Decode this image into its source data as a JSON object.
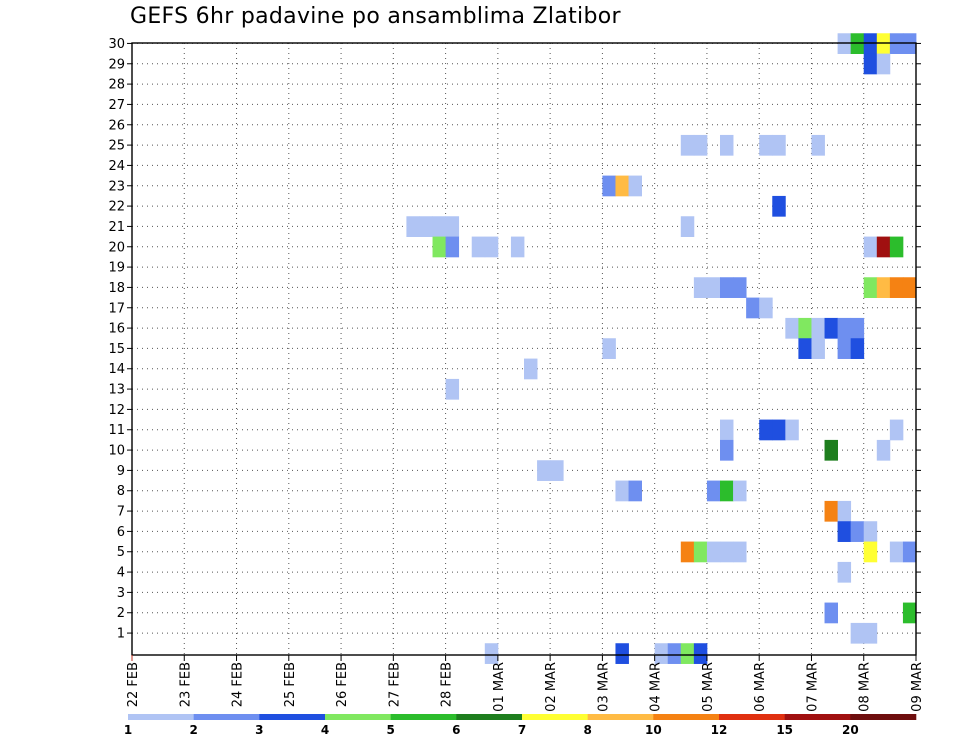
{
  "chart_data": {
    "type": "heatmap",
    "title": "GEFS 6hr padavine po ansamblima Zlatibor",
    "x_ticks": [
      "22 FEB",
      "23 FEB",
      "24 FEB",
      "25 FEB",
      "26 FEB",
      "27 FEB",
      "28 FEB",
      "01 MAR",
      "02 MAR",
      "03 MAR",
      "04 MAR",
      "05 MAR",
      "06 MAR",
      "07 MAR",
      "08 MAR",
      "09 MAR"
    ],
    "xlim_days": [
      0,
      15
    ],
    "y_ticks": [
      1,
      2,
      3,
      4,
      5,
      6,
      7,
      8,
      9,
      10,
      11,
      12,
      13,
      14,
      15,
      16,
      17,
      18,
      19,
      20,
      21,
      22,
      23,
      24,
      25,
      26,
      27,
      28,
      29,
      30
    ],
    "ylim": [
      0,
      30
    ],
    "grid": true,
    "colorbar": {
      "labels": [
        "1",
        "2",
        "3",
        "4",
        "5",
        "6",
        "7",
        "8",
        "10",
        "12",
        "15",
        "20"
      ],
      "colors": [
        "#b0c4f4",
        "#6e8ff0",
        "#1f4fe0",
        "#80e860",
        "#2cbd2c",
        "#1e7e1e",
        "#ffff33",
        "#ffbb44",
        "#f58213",
        "#e03010",
        "#a01010",
        "#6e0e0e"
      ]
    },
    "cells": [
      {
        "m": 30,
        "t": 54,
        "c": 0
      },
      {
        "m": 30,
        "t": 55,
        "c": 4
      },
      {
        "m": 30,
        "t": 56,
        "c": 2
      },
      {
        "m": 30,
        "t": 57,
        "c": 6
      },
      {
        "m": 30,
        "t": 58,
        "c": 1
      },
      {
        "m": 30,
        "t": 59,
        "c": 1
      },
      {
        "m": 29,
        "t": 56,
        "c": 2
      },
      {
        "m": 29,
        "t": 57,
        "c": 0
      },
      {
        "m": 25,
        "t": 42,
        "c": 0
      },
      {
        "m": 25,
        "t": 43,
        "c": 0
      },
      {
        "m": 25,
        "t": 45,
        "c": 0
      },
      {
        "m": 25,
        "t": 48,
        "c": 0
      },
      {
        "m": 25,
        "t": 49,
        "c": 0
      },
      {
        "m": 25,
        "t": 52,
        "c": 0
      },
      {
        "m": 23,
        "t": 36,
        "c": 1
      },
      {
        "m": 23,
        "t": 37,
        "c": 7
      },
      {
        "m": 23,
        "t": 38,
        "c": 0
      },
      {
        "m": 22,
        "t": 49,
        "c": 2
      },
      {
        "m": 21,
        "t": 21,
        "c": 0
      },
      {
        "m": 21,
        "t": 22,
        "c": 0
      },
      {
        "m": 21,
        "t": 23,
        "c": 0
      },
      {
        "m": 21,
        "t": 24,
        "c": 0
      },
      {
        "m": 21,
        "t": 42,
        "c": 0
      },
      {
        "m": 20,
        "t": 23,
        "c": 3
      },
      {
        "m": 20,
        "t": 24,
        "c": 1
      },
      {
        "m": 20,
        "t": 26,
        "c": 0
      },
      {
        "m": 20,
        "t": 27,
        "c": 0
      },
      {
        "m": 20,
        "t": 29,
        "c": 0
      },
      {
        "m": 20,
        "t": 56,
        "c": 0
      },
      {
        "m": 20,
        "t": 57,
        "c": 10
      },
      {
        "m": 20,
        "t": 58,
        "c": 4
      },
      {
        "m": 18,
        "t": 43,
        "c": 0
      },
      {
        "m": 18,
        "t": 44,
        "c": 0
      },
      {
        "m": 18,
        "t": 45,
        "c": 1
      },
      {
        "m": 18,
        "t": 46,
        "c": 1
      },
      {
        "m": 18,
        "t": 56,
        "c": 3
      },
      {
        "m": 18,
        "t": 57,
        "c": 7
      },
      {
        "m": 18,
        "t": 58,
        "c": 8
      },
      {
        "m": 18,
        "t": 59,
        "c": 8
      },
      {
        "m": 17,
        "t": 47,
        "c": 1
      },
      {
        "m": 17,
        "t": 48,
        "c": 0
      },
      {
        "m": 16,
        "t": 50,
        "c": 0
      },
      {
        "m": 16,
        "t": 51,
        "c": 3
      },
      {
        "m": 16,
        "t": 52,
        "c": 0
      },
      {
        "m": 16,
        "t": 53,
        "c": 2
      },
      {
        "m": 16,
        "t": 54,
        "c": 1
      },
      {
        "m": 16,
        "t": 55,
        "c": 1
      },
      {
        "m": 15,
        "t": 36,
        "c": 0
      },
      {
        "m": 15,
        "t": 51,
        "c": 2
      },
      {
        "m": 15,
        "t": 52,
        "c": 0
      },
      {
        "m": 15,
        "t": 54,
        "c": 1
      },
      {
        "m": 15,
        "t": 55,
        "c": 2
      },
      {
        "m": 14,
        "t": 30,
        "c": 0
      },
      {
        "m": 13,
        "t": 24,
        "c": 0
      },
      {
        "m": 11,
        "t": 45,
        "c": 0
      },
      {
        "m": 11,
        "t": 48,
        "c": 2
      },
      {
        "m": 11,
        "t": 49,
        "c": 2
      },
      {
        "m": 11,
        "t": 50,
        "c": 0
      },
      {
        "m": 11,
        "t": 58,
        "c": 0
      },
      {
        "m": 10,
        "t": 45,
        "c": 1
      },
      {
        "m": 10,
        "t": 53,
        "c": 5
      },
      {
        "m": 10,
        "t": 57,
        "c": 0
      },
      {
        "m": 9,
        "t": 31,
        "c": 0
      },
      {
        "m": 9,
        "t": 32,
        "c": 0
      },
      {
        "m": 8,
        "t": 37,
        "c": 0
      },
      {
        "m": 8,
        "t": 38,
        "c": 1
      },
      {
        "m": 8,
        "t": 44,
        "c": 1
      },
      {
        "m": 8,
        "t": 45,
        "c": 4
      },
      {
        "m": 8,
        "t": 46,
        "c": 0
      },
      {
        "m": 7,
        "t": 53,
        "c": 8
      },
      {
        "m": 7,
        "t": 54,
        "c": 0
      },
      {
        "m": 6,
        "t": 54,
        "c": 2
      },
      {
        "m": 6,
        "t": 55,
        "c": 1
      },
      {
        "m": 6,
        "t": 56,
        "c": 0
      },
      {
        "m": 5,
        "t": 42,
        "c": 8
      },
      {
        "m": 5,
        "t": 43,
        "c": 3
      },
      {
        "m": 5,
        "t": 44,
        "c": 0
      },
      {
        "m": 5,
        "t": 45,
        "c": 0
      },
      {
        "m": 5,
        "t": 46,
        "c": 0
      },
      {
        "m": 5,
        "t": 56,
        "c": 6
      },
      {
        "m": 5,
        "t": 58,
        "c": 0
      },
      {
        "m": 5,
        "t": 59,
        "c": 1
      },
      {
        "m": 4,
        "t": 54,
        "c": 0
      },
      {
        "m": 2,
        "t": 53,
        "c": 1
      },
      {
        "m": 2,
        "t": 59,
        "c": 4
      },
      {
        "m": 1,
        "t": 55,
        "c": 0
      },
      {
        "m": 1,
        "t": 56,
        "c": 0
      },
      {
        "m": 0,
        "t": 27,
        "c": 0
      },
      {
        "m": 0,
        "t": 37,
        "c": 2
      },
      {
        "m": 0,
        "t": 40,
        "c": 0
      },
      {
        "m": 0,
        "t": 41,
        "c": 1
      },
      {
        "m": 0,
        "t": 42,
        "c": 3
      },
      {
        "m": 0,
        "t": 43,
        "c": 2
      }
    ]
  }
}
